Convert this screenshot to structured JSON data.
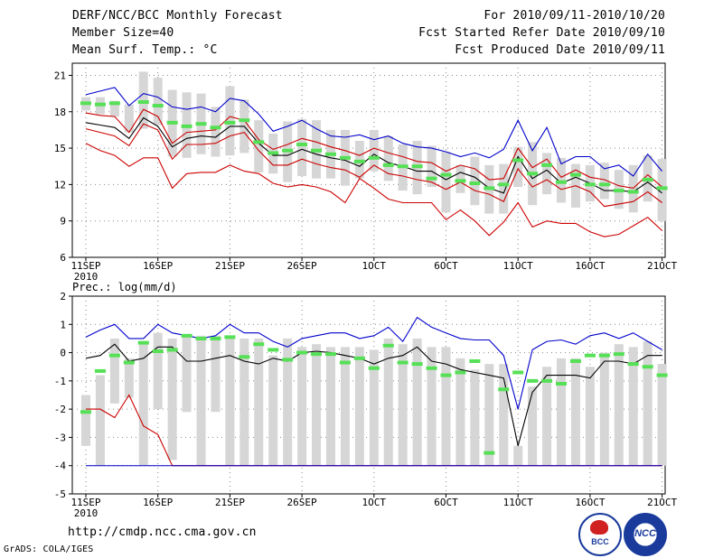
{
  "header": {
    "title": "DERF/NCC/BCC Monthly Forecast",
    "member_size": "Member Size=40",
    "variable": "Mean Surf. Temp.: °C",
    "period": "For 2010/09/11-2010/10/20",
    "started": "Fcst Started Refer Date 2010/09/10",
    "produced": "Fcst Produced Date 2010/09/11"
  },
  "footer": {
    "url": "http://cmdp.ncc.cma.gov.cn",
    "grads": "GrADS: COLA/IGES",
    "logo_bcc": "BCC",
    "logo_ncc": "NCC"
  },
  "colors": {
    "green": "#55e055",
    "box": "#d6d6d6",
    "max": "#0000cc",
    "min": "#cc0000",
    "mean": "#000000",
    "grid": "#888888"
  },
  "chart_data": [
    {
      "type": "line",
      "title": "Mean Surf. Temp.: °C",
      "ylim": [
        6,
        22
      ],
      "yticks": [
        6,
        9,
        12,
        15,
        18,
        21
      ],
      "xtick_labels": [
        {
          "day": 1,
          "label": "11SEP",
          "sub": "2010"
        },
        {
          "day": 6,
          "label": "16SEP"
        },
        {
          "day": 11,
          "label": "21SEP"
        },
        {
          "day": 16,
          "label": "26SEP"
        },
        {
          "day": 21,
          "label": "1OCT"
        },
        {
          "day": 26,
          "label": "6OCT"
        },
        {
          "day": 31,
          "label": "11OCT"
        },
        {
          "day": 36,
          "label": "16OCT"
        },
        {
          "day": 41,
          "label": "21OCT"
        }
      ],
      "days": 40,
      "series": [
        {
          "name": "max",
          "values": [
            19.4,
            19.7,
            20.0,
            18.5,
            19.5,
            19.2,
            18.4,
            18.2,
            18.4,
            18.0,
            19.1,
            18.9,
            17.8,
            16.4,
            16.8,
            17.3,
            16.6,
            16.0,
            15.9,
            16.1,
            15.7,
            16.0,
            15.4,
            15.1,
            15.0,
            14.7,
            14.3,
            14.6,
            14.2,
            14.9,
            17.3,
            14.8,
            16.7,
            13.7,
            14.3,
            14.3,
            13.3,
            13.6,
            12.7,
            14.5,
            13.1
          ]
        },
        {
          "name": "upper",
          "values": [
            17.9,
            17.7,
            17.6,
            16.3,
            18.2,
            17.6,
            15.4,
            16.3,
            16.4,
            16.5,
            17.6,
            17.3,
            15.7,
            14.9,
            15.3,
            15.8,
            15.5,
            15.1,
            14.8,
            14.4,
            15.0,
            14.6,
            14.3,
            13.9,
            13.8,
            13.1,
            13.6,
            13.3,
            12.4,
            12.5,
            15.0,
            13.4,
            14.1,
            12.6,
            13.2,
            12.6,
            12.4,
            11.9,
            11.7,
            12.8,
            11.8
          ]
        },
        {
          "name": "mean",
          "values": [
            17.1,
            16.9,
            16.7,
            15.8,
            17.5,
            16.8,
            15.1,
            15.8,
            16.0,
            15.9,
            16.8,
            16.8,
            15.4,
            14.4,
            14.4,
            14.9,
            14.5,
            14.2,
            14.0,
            13.5,
            14.5,
            13.8,
            13.5,
            13.1,
            13.1,
            12.4,
            13.0,
            12.6,
            11.7,
            11.3,
            14.3,
            12.5,
            13.2,
            12.1,
            12.6,
            12.1,
            11.5,
            11.5,
            11.4,
            12.2,
            11.3
          ]
        },
        {
          "name": "lower",
          "values": [
            16.6,
            16.3,
            16.0,
            15.2,
            17.0,
            16.5,
            14.1,
            15.3,
            15.3,
            15.4,
            16.0,
            16.3,
            14.8,
            13.6,
            13.6,
            14.1,
            13.7,
            13.4,
            13.2,
            12.6,
            13.6,
            12.9,
            12.7,
            12.4,
            12.2,
            11.6,
            12.2,
            11.5,
            11.2,
            10.6,
            13.3,
            11.8,
            12.4,
            11.6,
            11.9,
            11.4,
            10.2,
            10.4,
            10.6,
            11.4,
            10.5
          ]
        },
        {
          "name": "min",
          "values": [
            15.4,
            14.8,
            14.4,
            13.5,
            14.2,
            14.2,
            11.7,
            12.9,
            13.0,
            13.0,
            13.6,
            13.1,
            12.9,
            12.1,
            11.8,
            12.0,
            11.8,
            11.4,
            10.5,
            12.5,
            11.7,
            10.8,
            10.5,
            10.5,
            10.5,
            9.1,
            9.9,
            9.0,
            7.8,
            8.9,
            10.5,
            8.5,
            9.0,
            8.8,
            8.8,
            8.1,
            7.7,
            7.9,
            8.6,
            9.3,
            8.2
          ]
        },
        {
          "name": "box_top",
          "values": [
            19.2,
            19.2,
            18.9,
            18.6,
            21.3,
            20.8,
            19.8,
            19.6,
            19.5,
            18.4,
            20.1,
            19.0,
            17.3,
            16.2,
            17.2,
            17.4,
            17.3,
            16.5,
            16.5,
            15.6,
            16.5,
            16.0,
            15.3,
            15.6,
            15.2,
            14.7,
            13.6,
            14.3,
            13.6,
            13.7,
            15.1,
            15.5,
            14.6,
            14.2,
            13.7,
            13.6,
            13.8,
            13.2,
            13.6,
            14.4,
            14.1
          ]
        },
        {
          "name": "box_bottom",
          "values": [
            18.1,
            17.8,
            17.6,
            16.3,
            16.6,
            16.9,
            14.3,
            14.2,
            14.5,
            14.3,
            14.4,
            14.6,
            13.0,
            12.9,
            12.2,
            12.7,
            12.5,
            12.5,
            11.9,
            12.5,
            13.1,
            12.3,
            11.5,
            11.2,
            11.8,
            9.7,
            11.3,
            10.3,
            9.6,
            9.6,
            11.8,
            10.3,
            11.2,
            10.5,
            10.1,
            10.6,
            10.8,
            10.0,
            9.7,
            10.6,
            9.0
          ]
        },
        {
          "name": "observed",
          "values": [
            18.7,
            18.6,
            18.7,
            null,
            18.8,
            18.5,
            17.1,
            16.8,
            17.0,
            16.7,
            17.1,
            17.3,
            15.5,
            14.6,
            14.8,
            15.3,
            14.8,
            14.5,
            14.2,
            13.9,
            14.2,
            13.6,
            13.5,
            13.5,
            12.5,
            12.8,
            12.3,
            12.1,
            11.7,
            12.0,
            14.0,
            12.9,
            13.6,
            12.2,
            12.8,
            12.0,
            12.0,
            11.5,
            11.4,
            12.4,
            11.7
          ]
        }
      ]
    },
    {
      "type": "line",
      "title": "Prec.: log(mm/d)",
      "ylim": [
        -5,
        2
      ],
      "yticks": [
        -5,
        -4,
        -3,
        -2,
        -1,
        0,
        1,
        2
      ],
      "xtick_labels": [
        {
          "day": 1,
          "label": "11SEP",
          "sub": "2010"
        },
        {
          "day": 6,
          "label": "16SEP"
        },
        {
          "day": 11,
          "label": "21SEP"
        },
        {
          "day": 16,
          "label": "26SEP"
        },
        {
          "day": 21,
          "label": "1OCT"
        },
        {
          "day": 26,
          "label": "6OCT"
        },
        {
          "day": 31,
          "label": "11OCT"
        },
        {
          "day": 36,
          "label": "16OCT"
        },
        {
          "day": 41,
          "label": "21OCT"
        }
      ],
      "days": 40,
      "series": [
        {
          "name": "max",
          "values": [
            0.55,
            0.8,
            1.0,
            0.5,
            0.5,
            1.0,
            0.7,
            0.6,
            0.5,
            0.6,
            1.0,
            0.7,
            0.7,
            0.4,
            0.2,
            0.5,
            0.6,
            0.7,
            0.7,
            0.5,
            0.6,
            0.9,
            0.4,
            1.25,
            0.9,
            0.7,
            0.5,
            0.45,
            0.45,
            -0.1,
            -2.0,
            0.1,
            0.4,
            0.45,
            0.3,
            0.6,
            0.7,
            0.5,
            0.7,
            0.4,
            0.1
          ]
        },
        {
          "name": "mean",
          "values": [
            -0.2,
            -0.1,
            0.3,
            -0.3,
            -0.2,
            0.2,
            0.2,
            -0.3,
            -0.3,
            -0.2,
            -0.1,
            -0.3,
            -0.4,
            -0.2,
            -0.3,
            0.0,
            0.05,
            0.0,
            -0.1,
            -0.2,
            -0.4,
            -0.2,
            -0.1,
            0.2,
            -0.3,
            -0.4,
            -0.6,
            -0.7,
            -0.8,
            -0.9,
            -3.3,
            -1.4,
            -0.8,
            -0.8,
            -0.8,
            -0.9,
            -0.3,
            -0.3,
            -0.4,
            -0.1,
            -0.1
          ]
        },
        {
          "name": "min",
          "values": [
            -2.0,
            -2.0,
            -2.3,
            -1.5,
            -2.6,
            -2.9,
            -4.0,
            -4.0,
            -4.0,
            -4.0,
            -4.0,
            -4.0,
            -4.0,
            -4.0,
            -4.0,
            -4.0,
            -4.0,
            -4.0,
            -4.0,
            -4.0,
            -4.0,
            -4.0,
            -4.0,
            -4.0,
            -4.0,
            -4.0,
            -4.0,
            -4.0,
            -4.0,
            -4.0,
            -4.0,
            -4.0,
            -4.0,
            -4.0,
            -4.0,
            -4.0,
            -4.0,
            -4.0,
            -4.0,
            -4.0,
            -4.0
          ]
        },
        {
          "name": "box_top",
          "values": [
            -1.5,
            -0.8,
            0.5,
            -0.2,
            0.3,
            0.7,
            0.5,
            0.6,
            0.6,
            0.6,
            0.6,
            0.5,
            0.5,
            -0.1,
            0.5,
            0.2,
            0.3,
            0.2,
            0.2,
            0.2,
            0.1,
            0.5,
            0.3,
            0.5,
            0.2,
            0.2,
            -0.2,
            -0.6,
            -0.4,
            -0.4,
            -3.3,
            -1.2,
            -0.5,
            -0.2,
            -0.2,
            -0.5,
            0.0,
            0.3,
            0.2,
            0.4,
            -0.4
          ]
        },
        {
          "name": "box_bottom",
          "values": [
            -3.3,
            -4.0,
            -1.8,
            -1.6,
            -4.0,
            -2.0,
            -3.8,
            -2.1,
            -4.0,
            -2.1,
            -4.0,
            -4.0,
            -4.0,
            -4.0,
            -4.0,
            -4.0,
            -4.0,
            -4.0,
            -4.0,
            -4.0,
            -4.0,
            -4.0,
            -4.0,
            -4.0,
            -4.0,
            -4.0,
            -4.0,
            -4.0,
            -4.0,
            -4.0,
            -4.0,
            -4.0,
            -4.0,
            -4.0,
            -4.0,
            -4.0,
            -4.0,
            -4.0,
            -4.0,
            -4.0,
            -4.0
          ]
        },
        {
          "name": "observed",
          "values": [
            -2.1,
            -0.65,
            -0.1,
            -0.35,
            0.35,
            0.05,
            0.1,
            0.6,
            0.5,
            0.5,
            0.55,
            -0.15,
            0.3,
            0.1,
            -0.25,
            0.0,
            -0.05,
            -0.05,
            -0.35,
            -0.2,
            -0.55,
            0.25,
            -0.35,
            -0.4,
            -0.55,
            -0.8,
            -0.7,
            -0.3,
            -3.55,
            -1.3,
            -0.7,
            -1.0,
            -1.0,
            -1.1,
            -0.3,
            -0.1,
            -0.1,
            -0.05,
            -0.4,
            -0.5,
            -0.8
          ]
        }
      ]
    }
  ]
}
